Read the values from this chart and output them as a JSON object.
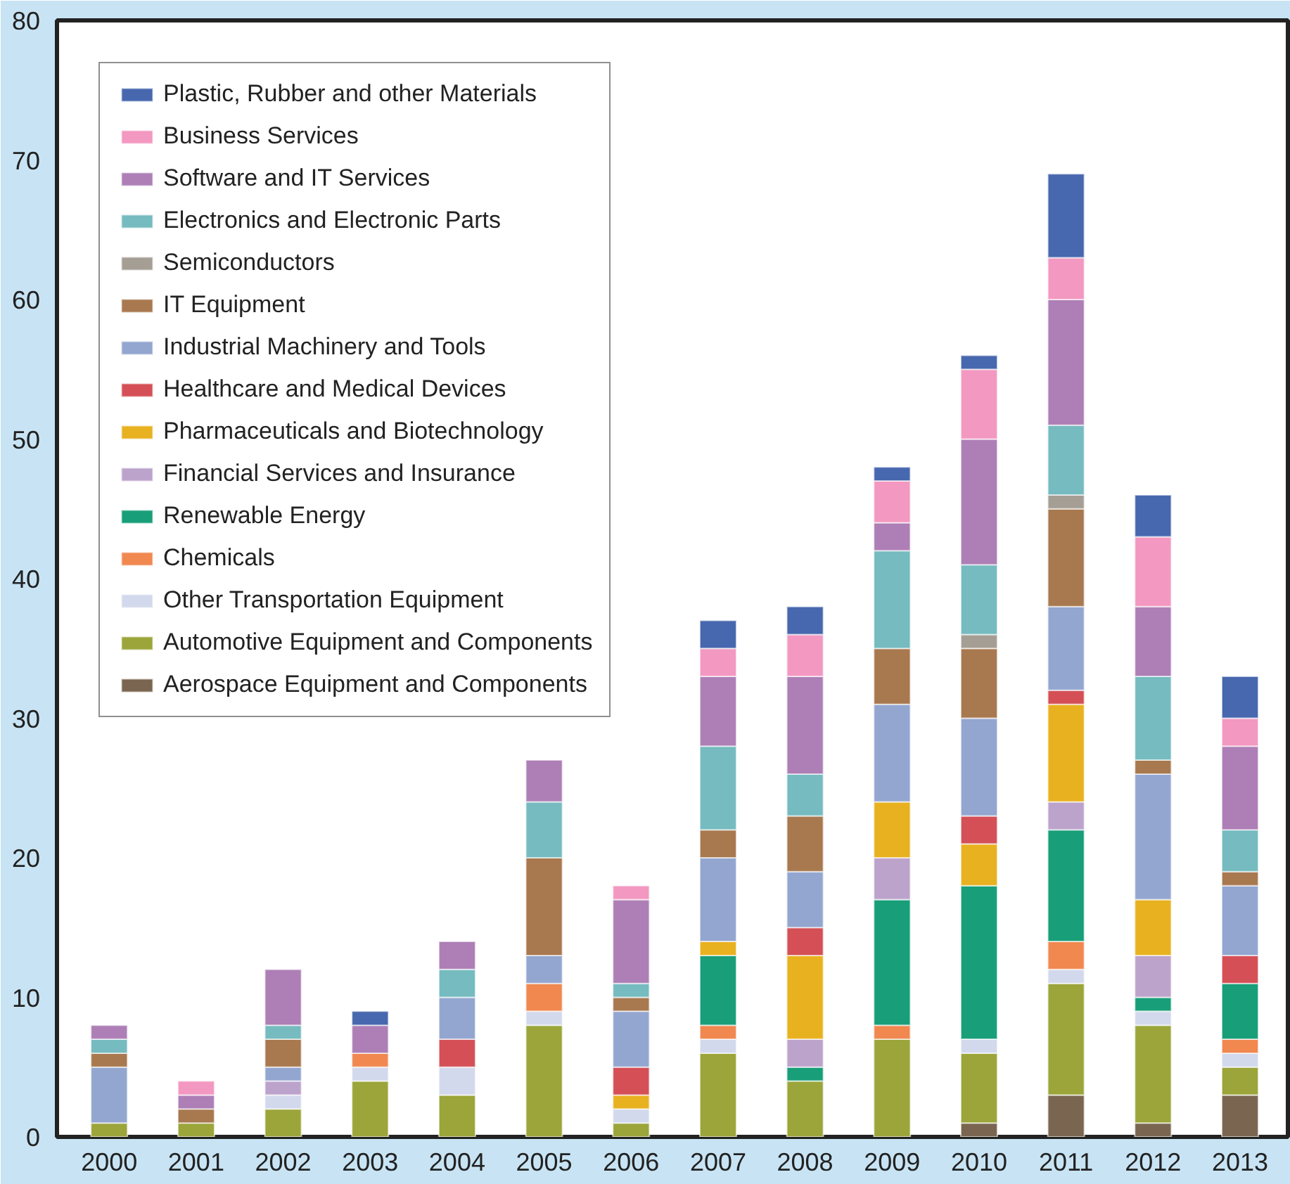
{
  "chart_data": {
    "type": "bar",
    "stacked": true,
    "categories": [
      "2000",
      "2001",
      "2002",
      "2003",
      "2004",
      "2005",
      "2006",
      "2007",
      "2008",
      "2009",
      "2010",
      "2011",
      "2012",
      "2013"
    ],
    "ylim": [
      0,
      80
    ],
    "yticks": [
      0,
      10,
      20,
      30,
      40,
      50,
      60,
      70,
      80
    ],
    "grid": false,
    "legend": "top left",
    "series": [
      {
        "name": "Aerospace Equipment and Components",
        "color": "#7a6650",
        "values": [
          null,
          null,
          null,
          null,
          null,
          null,
          null,
          null,
          null,
          null,
          1,
          3,
          1,
          3
        ]
      },
      {
        "name": "Automotive Equipment and Components",
        "color": "#9ba53a",
        "values": [
          1,
          1,
          2,
          4,
          3,
          8,
          1,
          6,
          4,
          7,
          5,
          8,
          7,
          2
        ]
      },
      {
        "name": "Other Transportation Equipment",
        "color": "#d3d9ec",
        "values": [
          null,
          null,
          1,
          1,
          2,
          1,
          1,
          1,
          null,
          null,
          1,
          1,
          1,
          1
        ]
      },
      {
        "name": "Chemicals",
        "color": "#f08850",
        "values": [
          null,
          null,
          null,
          1,
          null,
          2,
          null,
          1,
          null,
          1,
          null,
          2,
          null,
          1
        ]
      },
      {
        "name": "Renewable Energy",
        "color": "#189e78",
        "values": [
          null,
          null,
          null,
          null,
          null,
          null,
          null,
          5,
          1,
          9,
          11,
          8,
          1,
          4
        ]
      },
      {
        "name": "Financial Services and Insurance",
        "color": "#bca3cc",
        "values": [
          null,
          null,
          1,
          null,
          null,
          null,
          null,
          null,
          2,
          3,
          null,
          2,
          3,
          null
        ]
      },
      {
        "name": "Pharmaceuticals and Biotechnology",
        "color": "#e8b120",
        "values": [
          null,
          null,
          null,
          null,
          null,
          null,
          1,
          1,
          6,
          4,
          3,
          7,
          4,
          null
        ]
      },
      {
        "name": "Healthcare and Medical Devices",
        "color": "#d45056",
        "values": [
          null,
          null,
          null,
          null,
          2,
          null,
          2,
          null,
          2,
          null,
          2,
          1,
          null,
          2
        ]
      },
      {
        "name": "Industrial Machinery and Tools",
        "color": "#93a6d0",
        "values": [
          4,
          null,
          1,
          null,
          3,
          2,
          4,
          6,
          4,
          7,
          7,
          6,
          9,
          5
        ]
      },
      {
        "name": "IT Equipment",
        "color": "#a8784f",
        "values": [
          1,
          1,
          2,
          null,
          null,
          7,
          1,
          2,
          4,
          4,
          5,
          7,
          1,
          1
        ]
      },
      {
        "name": "Semiconductors",
        "color": "#a59e94",
        "values": [
          null,
          null,
          null,
          null,
          null,
          null,
          null,
          null,
          null,
          null,
          1,
          1,
          null,
          null
        ]
      },
      {
        "name": "Electronics and Electronic Parts",
        "color": "#75bbbf",
        "values": [
          1,
          null,
          1,
          null,
          2,
          4,
          1,
          6,
          3,
          7,
          5,
          5,
          6,
          3
        ]
      },
      {
        "name": "Software and IT Services",
        "color": "#ad7fb6",
        "values": [
          1,
          1,
          4,
          2,
          2,
          3,
          6,
          5,
          7,
          2,
          9,
          9,
          5,
          6
        ]
      },
      {
        "name": "Business Services",
        "color": "#f398c0",
        "values": [
          null,
          1,
          null,
          null,
          null,
          null,
          1,
          2,
          3,
          3,
          5,
          3,
          5,
          2
        ]
      },
      {
        "name": "Plastic, Rubber and other Materials",
        "color": "#4767ae",
        "values": [
          null,
          null,
          null,
          1,
          null,
          null,
          null,
          2,
          2,
          1,
          1,
          6,
          3,
          3
        ]
      }
    ]
  }
}
